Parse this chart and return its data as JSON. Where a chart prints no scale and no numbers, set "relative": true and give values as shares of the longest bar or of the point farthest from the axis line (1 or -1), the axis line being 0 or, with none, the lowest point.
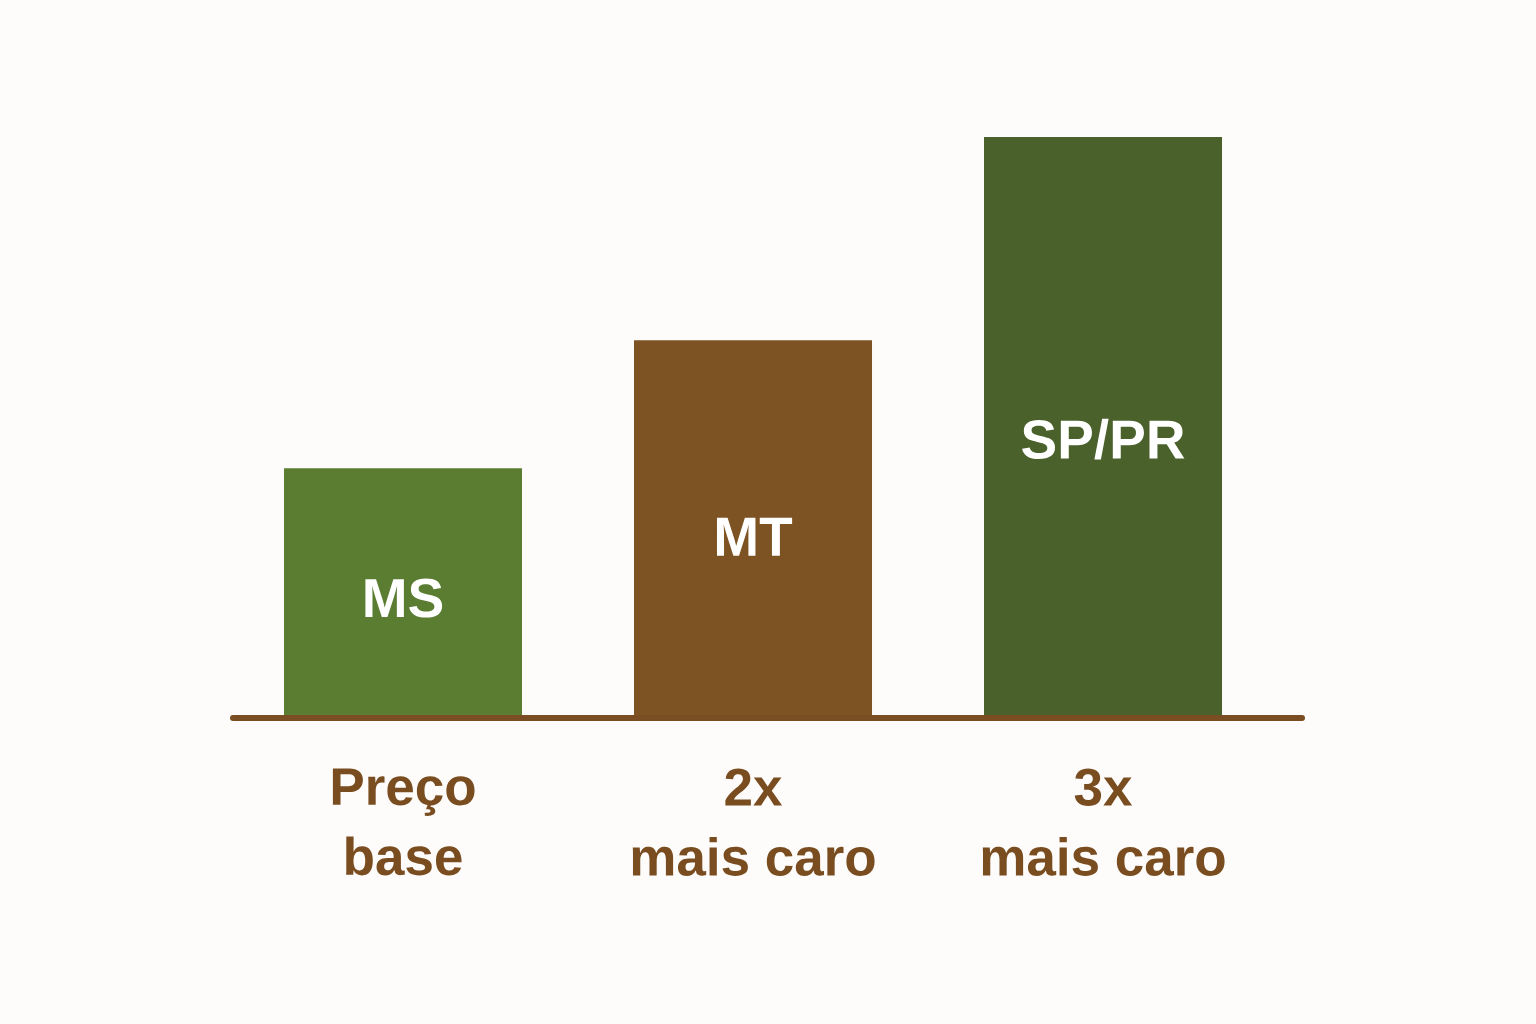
{
  "chart_data": {
    "type": "bar",
    "relative": true,
    "categories": [
      "Preço\nbase",
      "2x\nmais caro",
      "3x\nmais caro"
    ],
    "values": [
      0.43,
      0.65,
      1
    ],
    "colors": [
      "#5a7d32",
      "#7d5323",
      "#4a612b"
    ],
    "annotations": [
      "MS",
      "MT",
      "SP/PR"
    ]
  }
}
